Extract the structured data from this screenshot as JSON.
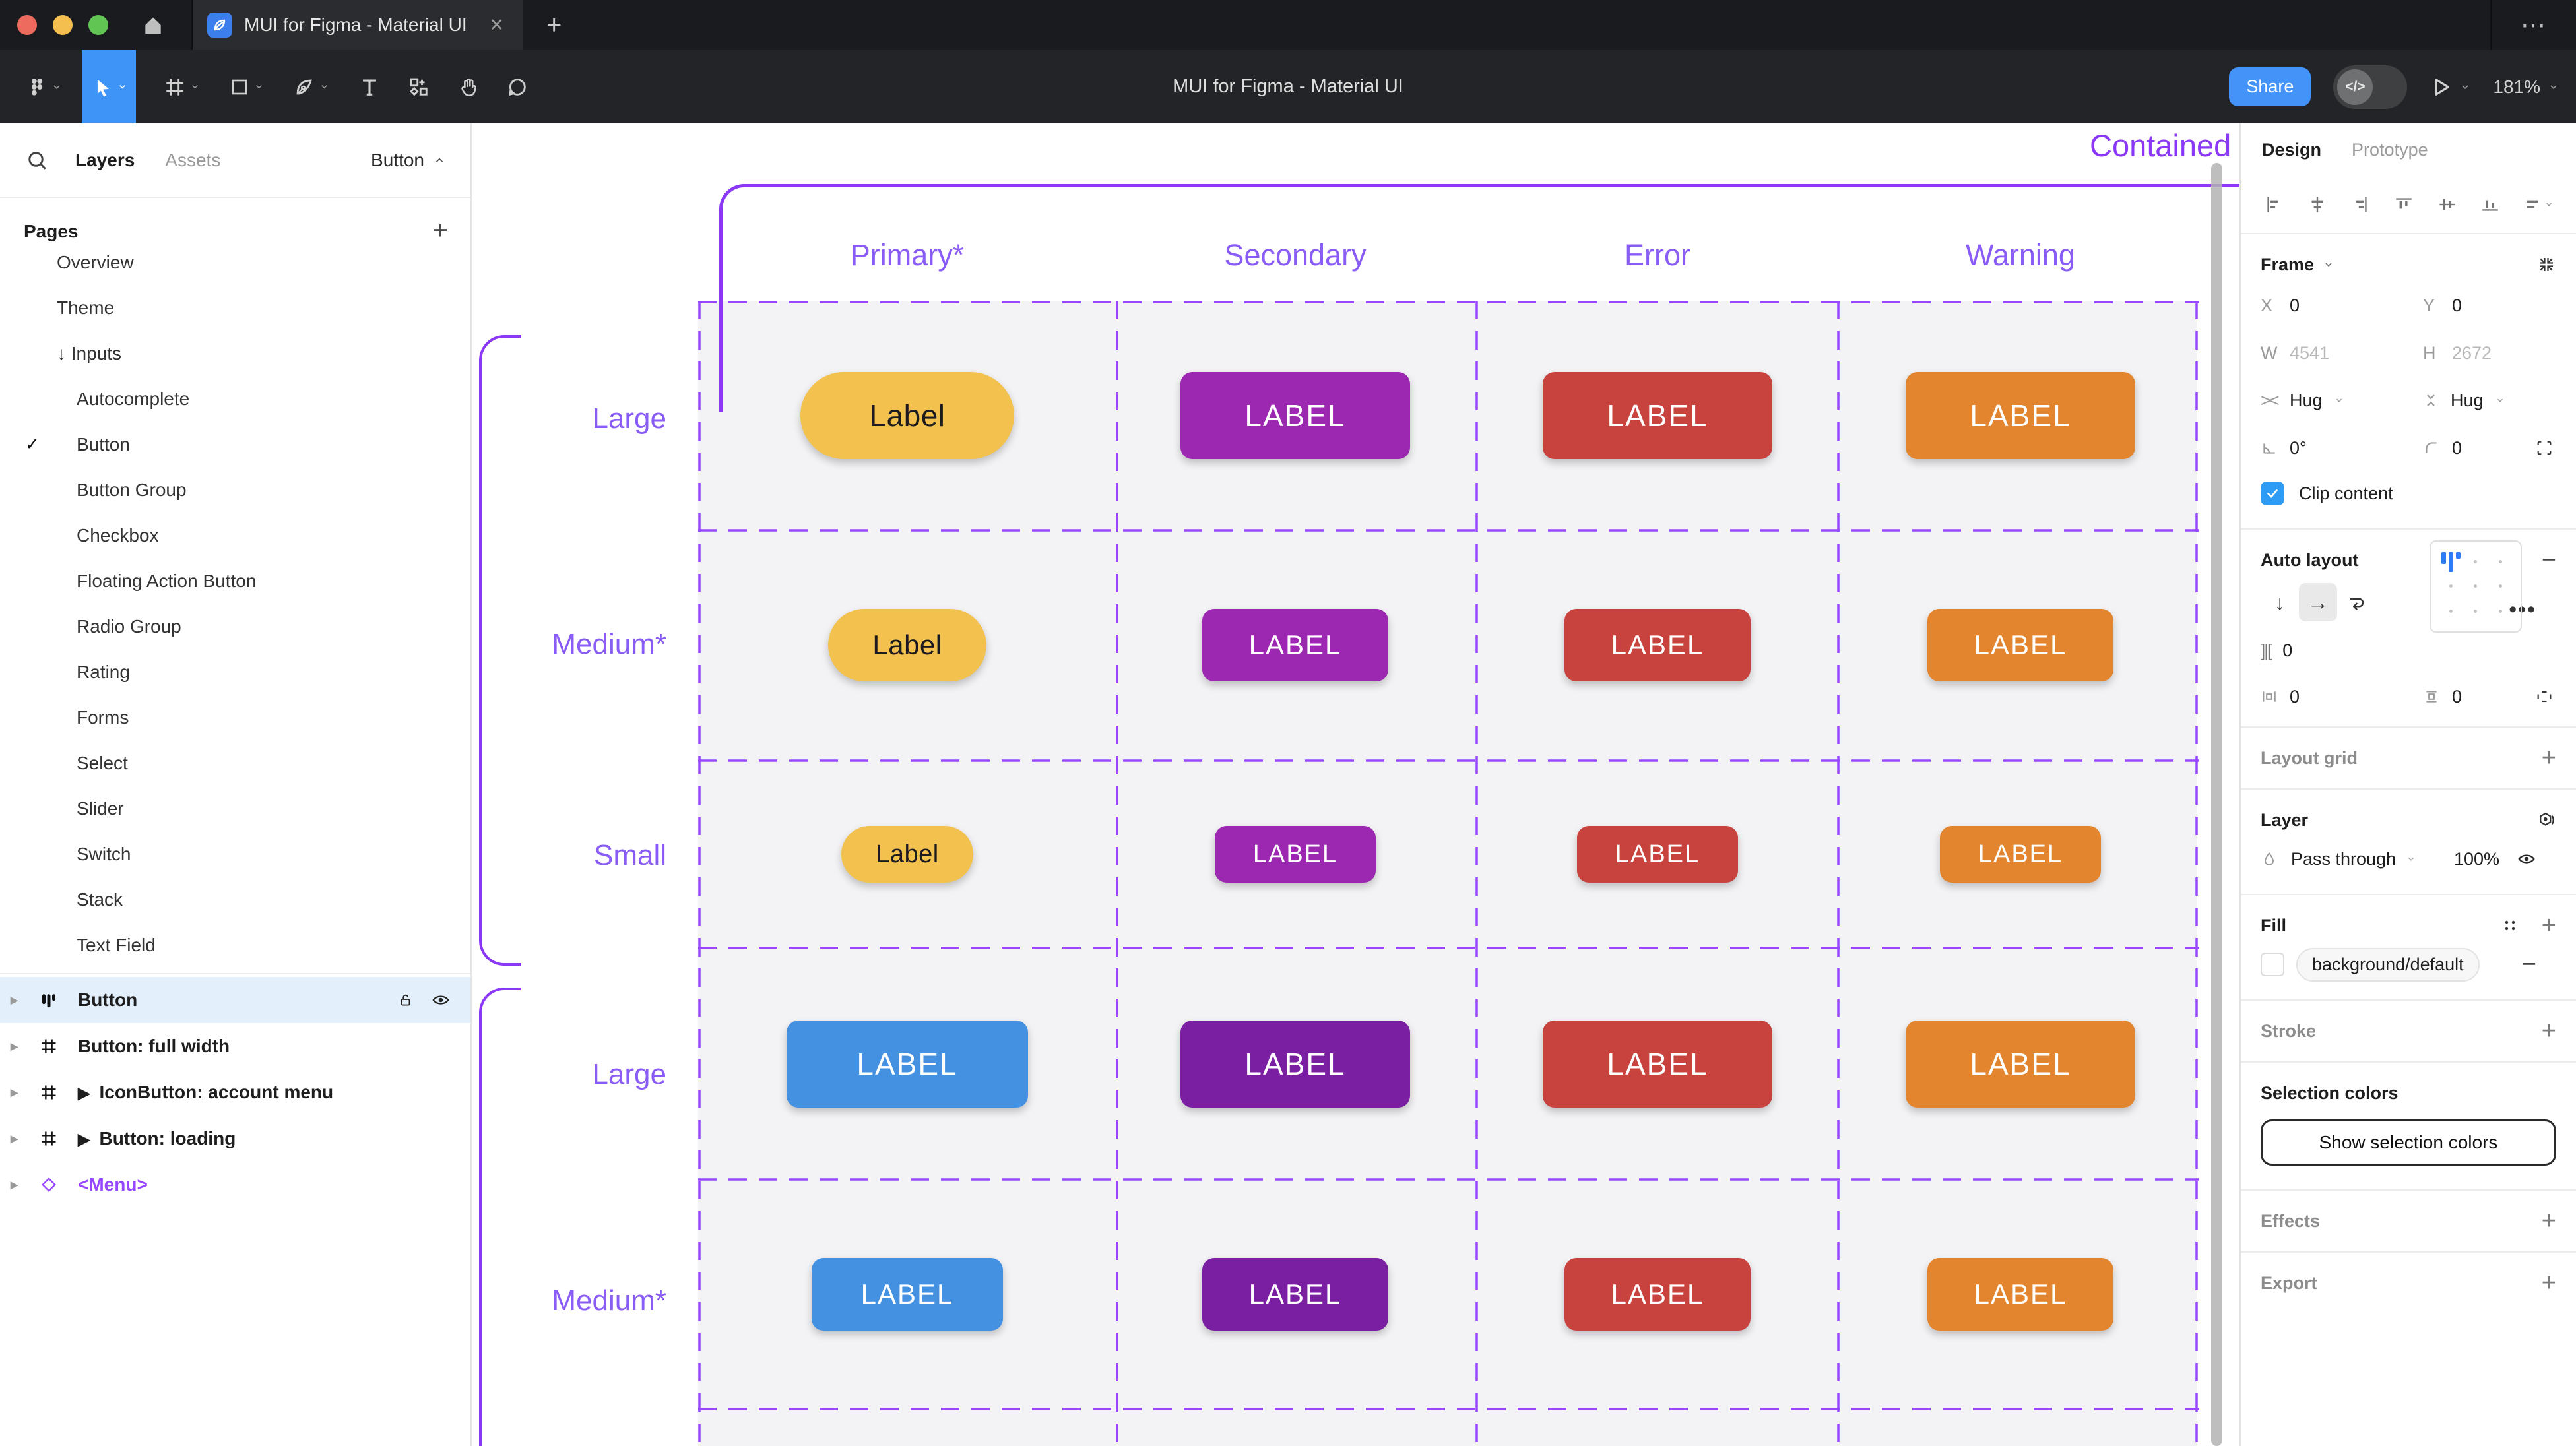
{
  "window": {
    "tab_title": "MUI for Figma - Material UI",
    "close_icon": "✕",
    "new_tab_icon": "+",
    "overflow_icon": "⋯"
  },
  "toolbar": {
    "doc_title": "MUI for Figma - Material UI",
    "share_label": "Share",
    "dev_toggle_label": "</>",
    "zoom_level": "181%"
  },
  "left_panel": {
    "tabs": {
      "layers": "Layers",
      "assets": "Assets"
    },
    "page_selector": "Button",
    "pages_header": "Pages",
    "pages": [
      {
        "label": "Overview",
        "indent": 1
      },
      {
        "label": "Theme",
        "indent": 1
      },
      {
        "label": "Inputs",
        "indent": 1,
        "prefix": "↓"
      },
      {
        "label": "Autocomplete",
        "indent": 2
      },
      {
        "label": "Button",
        "indent": 2,
        "checked": true
      },
      {
        "label": "Button Group",
        "indent": 2
      },
      {
        "label": "Checkbox",
        "indent": 2
      },
      {
        "label": "Floating Action Button",
        "indent": 2
      },
      {
        "label": "Radio Group",
        "indent": 2
      },
      {
        "label": "Rating",
        "indent": 2
      },
      {
        "label": "Forms",
        "indent": 2
      },
      {
        "label": "Select",
        "indent": 2
      },
      {
        "label": "Slider",
        "indent": 2
      },
      {
        "label": "Switch",
        "indent": 2
      },
      {
        "label": "Stack",
        "indent": 2
      },
      {
        "label": "Text Field",
        "indent": 2
      }
    ],
    "layers": [
      {
        "label": "Button",
        "icon": "autolayout",
        "selected": true
      },
      {
        "label": "Button: full width",
        "icon": "frame"
      },
      {
        "label": "IconButton: account menu",
        "icon": "frame",
        "play": true
      },
      {
        "label": "Button: loading",
        "icon": "frame",
        "play": true
      },
      {
        "label": "<Menu>",
        "icon": "component",
        "component": true
      }
    ]
  },
  "canvas": {
    "frame_title": "Contained",
    "columns": [
      "Primary*",
      "Secondary",
      "Error",
      "Warning"
    ],
    "groups": [
      {
        "rows": [
          {
            "label": "Large",
            "size": "large",
            "buttons": [
              {
                "text": "Label",
                "bg": "#F2C14E",
                "fg": "#1C1B1F",
                "pill": true
              },
              {
                "text": "LABEL",
                "bg": "#9C27B0",
                "fg": "#FFFFFF"
              },
              {
                "text": "LABEL",
                "bg": "#C8433E",
                "fg": "#FFFFFF"
              },
              {
                "text": "LABEL",
                "bg": "#E2852E",
                "fg": "#FFFFFF"
              }
            ]
          },
          {
            "label": "Medium*",
            "size": "medium",
            "buttons": [
              {
                "text": "Label",
                "bg": "#F2C14E",
                "fg": "#1C1B1F",
                "pill": true
              },
              {
                "text": "LABEL",
                "bg": "#9C27B0",
                "fg": "#FFFFFF"
              },
              {
                "text": "LABEL",
                "bg": "#C8433E",
                "fg": "#FFFFFF"
              },
              {
                "text": "LABEL",
                "bg": "#E2852E",
                "fg": "#FFFFFF"
              }
            ]
          },
          {
            "label": "Small",
            "size": "small",
            "buttons": [
              {
                "text": "Label",
                "bg": "#F2C14E",
                "fg": "#1C1B1F",
                "pill": true
              },
              {
                "text": "LABEL",
                "bg": "#9C27B0",
                "fg": "#FFFFFF"
              },
              {
                "text": "LABEL",
                "bg": "#C8433E",
                "fg": "#FFFFFF"
              },
              {
                "text": "LABEL",
                "bg": "#E2852E",
                "fg": "#FFFFFF"
              }
            ]
          }
        ]
      },
      {
        "rows": [
          {
            "label": "Large",
            "size": "large",
            "buttons": [
              {
                "text": "LABEL",
                "bg": "#4491E2",
                "fg": "#FFFFFF"
              },
              {
                "text": "LABEL",
                "bg": "#7B1FA2",
                "fg": "#FFFFFF"
              },
              {
                "text": "LABEL",
                "bg": "#C8433E",
                "fg": "#FFFFFF"
              },
              {
                "text": "LABEL",
                "bg": "#E2852E",
                "fg": "#FFFFFF"
              }
            ]
          },
          {
            "label": "Medium*",
            "size": "medium",
            "buttons": [
              {
                "text": "LABEL",
                "bg": "#4491E2",
                "fg": "#FFFFFF"
              },
              {
                "text": "LABEL",
                "bg": "#7B1FA2",
                "fg": "#FFFFFF"
              },
              {
                "text": "LABEL",
                "bg": "#C8433E",
                "fg": "#FFFFFF"
              },
              {
                "text": "LABEL",
                "bg": "#E2852E",
                "fg": "#FFFFFF"
              }
            ]
          }
        ]
      }
    ]
  },
  "right_panel": {
    "tabs": {
      "design": "Design",
      "prototype": "Prototype"
    },
    "frame": {
      "title": "Frame",
      "x_label": "X",
      "x": "0",
      "y_label": "Y",
      "y": "0",
      "w_label": "W",
      "w": "4541",
      "h_label": "H",
      "h": "2672",
      "hug_h": "Hug",
      "hug_v": "Hug",
      "rotation": "0°",
      "radius": "0",
      "clip_label": "Clip content"
    },
    "auto_layout": {
      "title": "Auto layout",
      "gap": "0",
      "pad_h": "0",
      "pad_v": "0"
    },
    "layout_grid": {
      "title": "Layout grid"
    },
    "layer": {
      "title": "Layer",
      "blend_mode": "Pass through",
      "opacity": "100%"
    },
    "fill": {
      "title": "Fill",
      "style_name": "background/default"
    },
    "stroke": {
      "title": "Stroke"
    },
    "selection_colors": {
      "title": "Selection colors",
      "button_label": "Show selection colors"
    },
    "effects": {
      "title": "Effects"
    },
    "export": {
      "title": "Export"
    }
  },
  "colors": {
    "accent_blue": "#4493F8",
    "figma_purple": "#9747FF",
    "frame_purple": "#8A38F5",
    "canvas_text_purple": "#8A5CF6",
    "selection_blue": "#2E9BF5",
    "grid_cell_bg": "#F3F3F5",
    "traffic": [
      "#EC6A5E",
      "#F4BF4F",
      "#61C554"
    ]
  }
}
